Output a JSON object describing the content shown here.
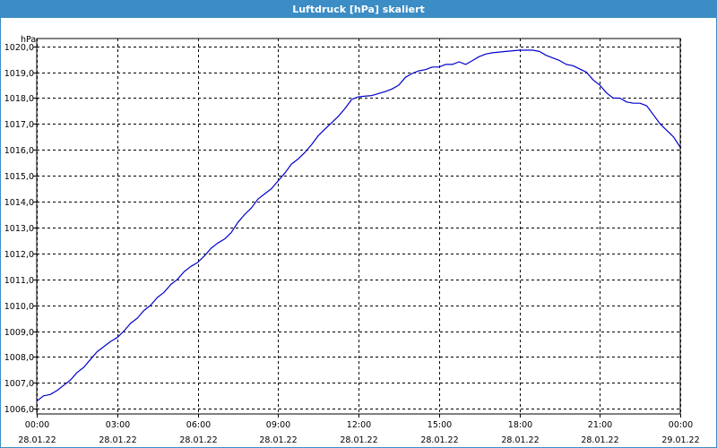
{
  "window": {
    "title": "Luftdruck [hPa] skaliert"
  },
  "chart_data": {
    "type": "line",
    "title": "Luftdruck [hPa] skaliert",
    "ylabel": "hPa",
    "xlabel": "",
    "xlim": [
      "28.01.22 00:00",
      "29.01.22 00:00"
    ],
    "ylim": [
      1005.8,
      1020.3
    ],
    "grid": true,
    "yticks": [
      "1006,0",
      "1007,0",
      "1008,0",
      "1009,0",
      "1010,0",
      "1011,0",
      "1012,0",
      "1013,0",
      "1014,0",
      "1015,0",
      "1016,0",
      "1017,0",
      "1018,0",
      "1019,0",
      "1020,0"
    ],
    "xticks": [
      {
        "time": "00:00",
        "date": "28.01.22"
      },
      {
        "time": "03:00",
        "date": "28.01.22"
      },
      {
        "time": "06:00",
        "date": "28.01.22"
      },
      {
        "time": "09:00",
        "date": "28.01.22"
      },
      {
        "time": "12:00",
        "date": "28.01.22"
      },
      {
        "time": "15:00",
        "date": "28.01.22"
      },
      {
        "time": "18:00",
        "date": "28.01.22"
      },
      {
        "time": "21:00",
        "date": "28.01.22"
      },
      {
        "time": "00:00",
        "date": "29.01.22"
      }
    ],
    "series": [
      {
        "color": "#0000cc",
        "x": [
          "28.01.22 00:00",
          "28.01.22 00:15",
          "28.01.22 00:30",
          "28.01.22 00:45",
          "28.01.22 01:00",
          "28.01.22 01:15",
          "28.01.22 01:30",
          "28.01.22 01:45",
          "28.01.22 02:00",
          "28.01.22 02:15",
          "28.01.22 02:30",
          "28.01.22 02:45",
          "28.01.22 03:00",
          "28.01.22 03:15",
          "28.01.22 03:30",
          "28.01.22 03:45",
          "28.01.22 04:00",
          "28.01.22 04:15",
          "28.01.22 04:30",
          "28.01.22 04:45",
          "28.01.22 05:00",
          "28.01.22 05:15",
          "28.01.22 05:30",
          "28.01.22 05:45",
          "28.01.22 06:00",
          "28.01.22 06:15",
          "28.01.22 06:30",
          "28.01.22 06:45",
          "28.01.22 07:00",
          "28.01.22 07:15",
          "28.01.22 07:30",
          "28.01.22 07:45",
          "28.01.22 08:00",
          "28.01.22 08:15",
          "28.01.22 08:30",
          "28.01.22 08:45",
          "28.01.22 09:00",
          "28.01.22 09:15",
          "28.01.22 09:30",
          "28.01.22 09:45",
          "28.01.22 10:00",
          "28.01.22 10:15",
          "28.01.22 10:30",
          "28.01.22 10:45",
          "28.01.22 11:00",
          "28.01.22 11:15",
          "28.01.22 11:30",
          "28.01.22 11:45",
          "28.01.22 12:00",
          "28.01.22 12:30",
          "28.01.22 13:00",
          "28.01.22 13:15",
          "28.01.22 13:30",
          "28.01.22 13:45",
          "28.01.22 14:00",
          "28.01.22 14:15",
          "28.01.22 14:30",
          "28.01.22 14:45",
          "28.01.22 15:00",
          "28.01.22 15:15",
          "28.01.22 15:30",
          "28.01.22 15:45",
          "28.01.22 16:00",
          "28.01.22 16:15",
          "28.01.22 16:30",
          "28.01.22 16:45",
          "28.01.22 17:00",
          "28.01.22 17:30",
          "28.01.22 18:00",
          "28.01.22 18:30",
          "28.01.22 18:45",
          "28.01.22 19:00",
          "28.01.22 19:30",
          "28.01.22 19:45",
          "28.01.22 20:00",
          "28.01.22 20:30",
          "28.01.22 20:45",
          "28.01.22 21:00",
          "28.01.22 21:15",
          "28.01.22 21:30",
          "28.01.22 21:45",
          "28.01.22 22:00",
          "28.01.22 22:15",
          "28.01.22 22:30",
          "28.01.22 22:45",
          "28.01.22 23:00",
          "28.01.22 23:15",
          "28.01.22 23:30",
          "28.01.22 23:45",
          "29.01.22 00:00"
        ],
        "values": [
          1006.3,
          1006.5,
          1006.55,
          1006.7,
          1006.9,
          1007.1,
          1007.4,
          1007.6,
          1007.9,
          1008.2,
          1008.4,
          1008.6,
          1008.75,
          1009.0,
          1009.3,
          1009.5,
          1009.8,
          1010.0,
          1010.3,
          1010.5,
          1010.8,
          1011.0,
          1011.3,
          1011.5,
          1011.65,
          1011.9,
          1012.2,
          1012.4,
          1012.55,
          1012.8,
          1013.2,
          1013.5,
          1013.75,
          1014.1,
          1014.3,
          1014.5,
          1014.8,
          1015.1,
          1015.45,
          1015.65,
          1015.9,
          1016.2,
          1016.55,
          1016.8,
          1017.05,
          1017.3,
          1017.6,
          1017.95,
          1018.05,
          1018.1,
          1018.25,
          1018.35,
          1018.5,
          1018.8,
          1018.95,
          1019.05,
          1019.1,
          1019.2,
          1019.2,
          1019.3,
          1019.3,
          1019.4,
          1019.3,
          1019.45,
          1019.6,
          1019.7,
          1019.75,
          1019.8,
          1019.85,
          1019.85,
          1019.8,
          1019.65,
          1019.45,
          1019.3,
          1019.25,
          1019.0,
          1018.7,
          1018.5,
          1018.2,
          1018.0,
          1018.0,
          1017.85,
          1017.8,
          1017.8,
          1017.7,
          1017.35,
          1017.0,
          1016.75,
          1016.5,
          1016.1
        ]
      }
    ]
  }
}
